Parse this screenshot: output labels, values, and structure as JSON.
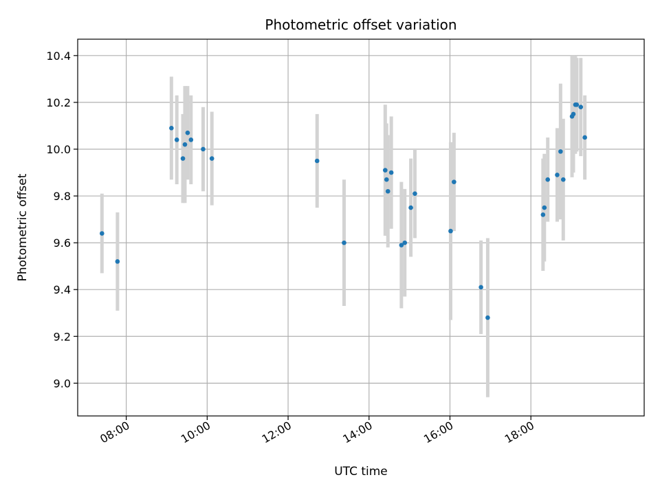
{
  "chart_data": {
    "type": "scatter",
    "title": "Photometric offset variation",
    "xlabel": "UTC time",
    "ylabel": "Photometric offset",
    "x_unit": "time (HH:MM)",
    "xlim": [
      "06:48",
      "20:48"
    ],
    "ylim": [
      8.86,
      10.47
    ],
    "x_ticks": [
      "08:00",
      "10:00",
      "12:00",
      "14:00",
      "16:00",
      "18:00"
    ],
    "y_ticks": [
      "9.0",
      "9.2",
      "9.4",
      "9.6",
      "9.8",
      "10.0",
      "10.2",
      "10.4"
    ],
    "grid": true,
    "legend": "none",
    "colors": {
      "point": "#1f77b4",
      "errorbar": "#d3d3d3",
      "grid": "#b0b0b0"
    },
    "series": [
      {
        "points": [
          {
            "x": "07:24",
            "y": 9.64,
            "err": 0.17
          },
          {
            "x": "07:47",
            "y": 9.52,
            "err": 0.21
          },
          {
            "x": "09:07",
            "y": 10.09,
            "err": 0.22
          },
          {
            "x": "09:15",
            "y": 10.04,
            "err": 0.19
          },
          {
            "x": "09:24",
            "y": 9.96,
            "err": 0.19
          },
          {
            "x": "09:27",
            "y": 10.02,
            "err": 0.25
          },
          {
            "x": "09:31",
            "y": 10.07,
            "err": 0.2
          },
          {
            "x": "09:36",
            "y": 10.04,
            "err": 0.19
          },
          {
            "x": "09:54",
            "y": 10.0,
            "err": 0.18
          },
          {
            "x": "10:07",
            "y": 9.96,
            "err": 0.2
          },
          {
            "x": "12:43",
            "y": 9.95,
            "err": 0.2
          },
          {
            "x": "13:23",
            "y": 9.6,
            "err": 0.27
          },
          {
            "x": "14:24",
            "y": 9.91,
            "err": 0.28
          },
          {
            "x": "14:26",
            "y": 9.87,
            "err": 0.24
          },
          {
            "x": "14:28",
            "y": 9.82,
            "err": 0.24
          },
          {
            "x": "14:33",
            "y": 9.9,
            "err": 0.24
          },
          {
            "x": "14:48",
            "y": 9.59,
            "err": 0.27
          },
          {
            "x": "14:53",
            "y": 9.6,
            "err": 0.23
          },
          {
            "x": "15:02",
            "y": 9.75,
            "err": 0.21
          },
          {
            "x": "15:08",
            "y": 9.81,
            "err": 0.19
          },
          {
            "x": "16:01",
            "y": 9.65,
            "err": 0.38
          },
          {
            "x": "16:06",
            "y": 9.86,
            "err": 0.21
          },
          {
            "x": "16:46",
            "y": 9.41,
            "err": 0.2
          },
          {
            "x": "16:56",
            "y": 9.28,
            "err": 0.34
          },
          {
            "x": "18:18",
            "y": 9.72,
            "err": 0.24
          },
          {
            "x": "18:20",
            "y": 9.75,
            "err": 0.23
          },
          {
            "x": "18:25",
            "y": 9.87,
            "err": 0.18
          },
          {
            "x": "18:39",
            "y": 9.89,
            "err": 0.2
          },
          {
            "x": "18:44",
            "y": 9.99,
            "err": 0.29
          },
          {
            "x": "18:48",
            "y": 9.87,
            "err": 0.26
          },
          {
            "x": "19:01",
            "y": 10.14,
            "err": 0.26
          },
          {
            "x": "19:03",
            "y": 10.15,
            "err": 0.25
          },
          {
            "x": "19:06",
            "y": 10.19,
            "err": 0.21
          },
          {
            "x": "19:08",
            "y": 10.19,
            "err": 0.2
          },
          {
            "x": "19:14",
            "y": 10.18,
            "err": 0.21
          },
          {
            "x": "19:20",
            "y": 10.05,
            "err": 0.18
          }
        ]
      }
    ]
  }
}
